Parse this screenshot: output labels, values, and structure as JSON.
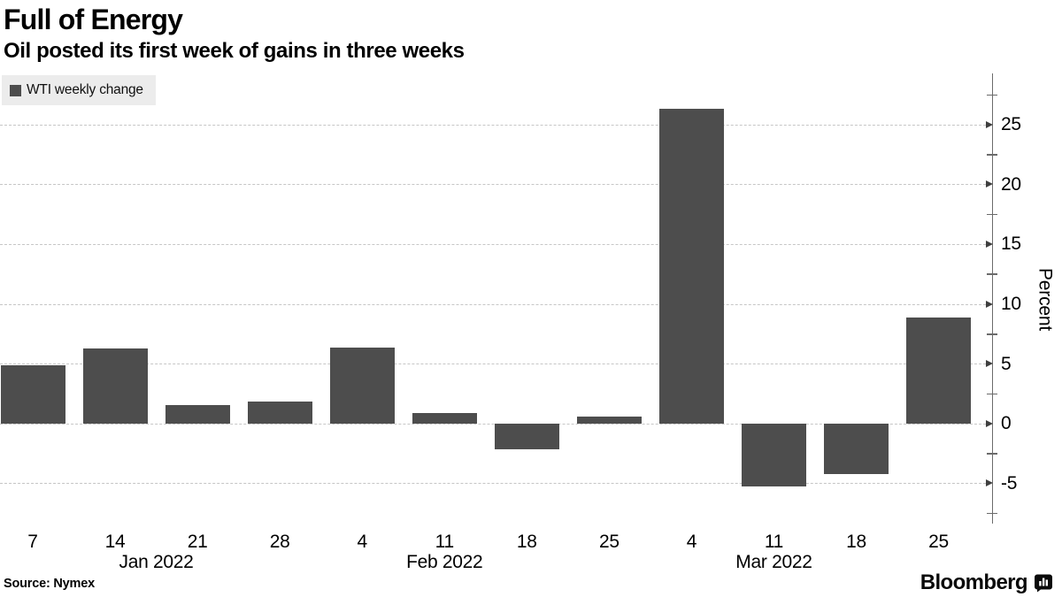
{
  "header": {
    "title": "Full of Energy",
    "subtitle": "Oil posted its first week of gains in three weeks"
  },
  "legend": {
    "label": "WTI weekly change",
    "swatch_color": "#4d4d4d"
  },
  "footer": {
    "source": "Source: Nymex",
    "brand": "Bloomberg",
    "brand_icon": "bloomberg-terminal-icon"
  },
  "colors": {
    "bar": "#4d4d4d",
    "grid": "#c6c6c6",
    "axis": "#6b6b6b",
    "tick_arrow": "#3f3f3f",
    "legend_bg": "#ececec",
    "text": "#000000"
  },
  "chart_data": {
    "type": "bar",
    "title": "Full of Energy",
    "subtitle": "Oil posted its first week of gains in three weeks",
    "categories": [
      "7",
      "14",
      "21",
      "28",
      "4",
      "11",
      "18",
      "25",
      "4",
      "11",
      "18",
      "25"
    ],
    "series": [
      {
        "name": "WTI weekly change",
        "values": [
          4.9,
          6.3,
          1.6,
          1.9,
          6.4,
          0.9,
          -2.1,
          0.6,
          26.3,
          -5.2,
          -4.2,
          8.9
        ]
      }
    ],
    "month_labels": [
      {
        "label": "Jan 2022",
        "index": 1.5
      },
      {
        "label": "Feb 2022",
        "index": 5
      },
      {
        "label": "Mar 2022",
        "index": 9
      }
    ],
    "xlabel": "",
    "ylabel": "Percent",
    "yticks": [
      25,
      20,
      15,
      10,
      5,
      0,
      -5
    ],
    "minor_yticks": [
      27.5,
      22.5,
      17.5,
      12.5,
      7.5,
      2.5,
      -2.5,
      -7.5
    ],
    "ylim": [
      -8.4,
      29.3
    ],
    "grid": "horizontal-dashed",
    "legend_position": "top-left",
    "axis_side": "right"
  }
}
